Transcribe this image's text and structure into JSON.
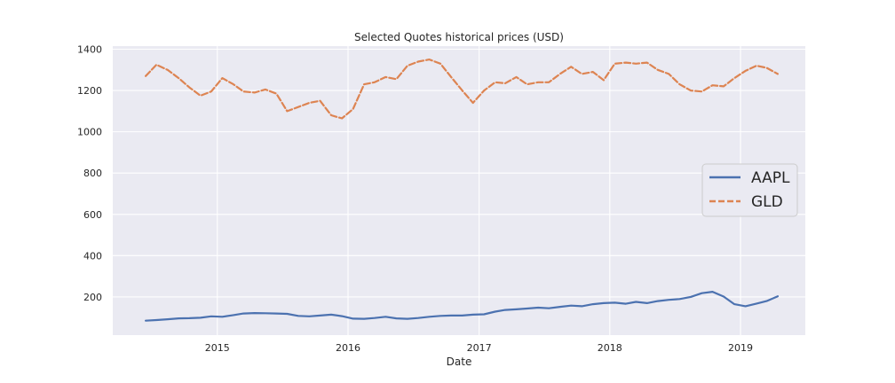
{
  "chart_data": {
    "type": "line",
    "title": "Selected Quotes historical prices (USD)",
    "xlabel": "Date",
    "ylabel": "",
    "x_ticks": [
      "2015",
      "2016",
      "2017",
      "2018",
      "2019"
    ],
    "y_ticks": [
      200,
      400,
      600,
      800,
      1000,
      1200,
      1400
    ],
    "xlim": [
      "2014-03-15",
      "2019-07-01"
    ],
    "ylim": [
      15,
      1415
    ],
    "grid": true,
    "legend_position": "center-right",
    "x": [
      "2014-06",
      "2014-07",
      "2014-08",
      "2014-09",
      "2014-10",
      "2014-11",
      "2014-12",
      "2015-01",
      "2015-02",
      "2015-03",
      "2015-04",
      "2015-05",
      "2015-06",
      "2015-07",
      "2015-08",
      "2015-09",
      "2015-10",
      "2015-11",
      "2015-12",
      "2016-01",
      "2016-02",
      "2016-03",
      "2016-04",
      "2016-05",
      "2016-06",
      "2016-07",
      "2016-08",
      "2016-09",
      "2016-10",
      "2016-11",
      "2016-12",
      "2017-01",
      "2017-02",
      "2017-03",
      "2017-04",
      "2017-05",
      "2017-06",
      "2017-07",
      "2017-08",
      "2017-09",
      "2017-10",
      "2017-11",
      "2017-12",
      "2018-01",
      "2018-02",
      "2018-03",
      "2018-04",
      "2018-05",
      "2018-06",
      "2018-07",
      "2018-08",
      "2018-09",
      "2018-10",
      "2018-11",
      "2018-12",
      "2019-01",
      "2019-02",
      "2019-03",
      "2019-04"
    ],
    "series": [
      {
        "name": "AAPL",
        "color": "#4c72b0",
        "style": "solid",
        "values": [
          85,
          88,
          92,
          96,
          97,
          99,
          106,
          104,
          112,
          120,
          122,
          121,
          120,
          118,
          108,
          106,
          110,
          114,
          107,
          95,
          94,
          98,
          104,
          96,
          94,
          98,
          104,
          108,
          110,
          110,
          114,
          116,
          129,
          137,
          140,
          144,
          148,
          145,
          152,
          158,
          155,
          165,
          170,
          172,
          167,
          176,
          170,
          180,
          186,
          190,
          200,
          218,
          225,
          202,
          165,
          155,
          168,
          180,
          203
        ]
      },
      {
        "name": "GLD",
        "color": "#dd8452",
        "style": "dashed",
        "values": [
          1270,
          1325,
          1300,
          1260,
          1215,
          1175,
          1195,
          1260,
          1230,
          1195,
          1190,
          1205,
          1185,
          1100,
          1120,
          1140,
          1150,
          1080,
          1065,
          1110,
          1230,
          1240,
          1265,
          1255,
          1320,
          1340,
          1350,
          1330,
          1265,
          1200,
          1140,
          1200,
          1240,
          1235,
          1265,
          1230,
          1240,
          1240,
          1280,
          1315,
          1280,
          1290,
          1250,
          1330,
          1335,
          1330,
          1335,
          1300,
          1280,
          1230,
          1200,
          1195,
          1225,
          1220,
          1260,
          1295,
          1320,
          1310,
          1280
        ]
      }
    ]
  }
}
